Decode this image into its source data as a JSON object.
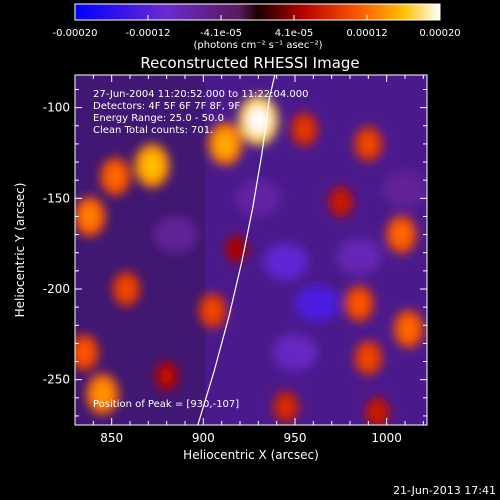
{
  "colorbar": {
    "tick_labels": [
      "-0.00020",
      "-0.00012",
      "-4.1e-05",
      "4.1e-05",
      "0.00012",
      "0.00020"
    ],
    "unit_label": "(photons cm⁻² s⁻¹ asec⁻²)",
    "range": [
      -0.0002,
      0.0002
    ]
  },
  "chart_data": {
    "type": "heatmap",
    "title": "Reconstructed RHESSI Image",
    "xlabel": "Heliocentric X (arcsec)",
    "ylabel": "Heliocentric Y (arcsec)",
    "xlim": [
      830,
      1022
    ],
    "ylim": [
      -275,
      -82
    ],
    "x_ticks": [
      850,
      900,
      950,
      1000
    ],
    "y_ticks": [
      -100,
      -150,
      -200,
      -250
    ],
    "annotations": [
      "27-Jun-2004 11:20:52.000 to 11:22:04.000",
      "Detectors: 4F 5F 6F 7F 8F, 9F",
      "Energy Range: 25.0 - 50.0",
      "Clean    Total counts: 701.",
      "Position of Peak = [930,-107]"
    ],
    "peak": [
      930,
      -107
    ],
    "limb_curve": [
      [
        897,
        -275
      ],
      [
        906,
        -245
      ],
      [
        914,
        -215
      ],
      [
        921,
        -185
      ],
      [
        927,
        -155
      ],
      [
        932,
        -125
      ],
      [
        936,
        -95
      ],
      [
        939,
        -82
      ]
    ],
    "hot_spots": [
      {
        "x": 930,
        "y": -107,
        "v": 0.0002
      },
      {
        "x": 912,
        "y": -120,
        "v": 0.00015
      },
      {
        "x": 872,
        "y": -132,
        "v": 0.00016
      },
      {
        "x": 852,
        "y": -138,
        "v": 0.00012
      },
      {
        "x": 838,
        "y": -160,
        "v": 0.00013
      },
      {
        "x": 858,
        "y": -200,
        "v": 0.0001
      },
      {
        "x": 835,
        "y": -235,
        "v": 0.00011
      },
      {
        "x": 845,
        "y": -258,
        "v": 0.00014
      },
      {
        "x": 905,
        "y": -212,
        "v": 0.0001
      },
      {
        "x": 955,
        "y": -112,
        "v": 9e-05
      },
      {
        "x": 990,
        "y": -120,
        "v": 0.0001
      },
      {
        "x": 1008,
        "y": -170,
        "v": 0.00012
      },
      {
        "x": 975,
        "y": -152,
        "v": 7e-05
      },
      {
        "x": 985,
        "y": -208,
        "v": 0.00011
      },
      {
        "x": 990,
        "y": -238,
        "v": 0.0001
      },
      {
        "x": 1012,
        "y": -222,
        "v": 0.00012
      },
      {
        "x": 945,
        "y": -265,
        "v": 8e-05
      },
      {
        "x": 995,
        "y": -268,
        "v": 7e-05
      },
      {
        "x": 880,
        "y": -248,
        "v": 6e-05
      },
      {
        "x": 918,
        "y": -178,
        "v": 5e-05
      }
    ],
    "cold_spots": [
      {
        "x": 962,
        "y": -208,
        "v": -0.00013
      },
      {
        "x": 945,
        "y": -185,
        "v": -0.00011
      },
      {
        "x": 950,
        "y": -235,
        "v": -9e-05
      },
      {
        "x": 985,
        "y": -182,
        "v": -8e-05
      },
      {
        "x": 885,
        "y": -170,
        "v": -6e-05
      },
      {
        "x": 930,
        "y": -150,
        "v": -7e-05
      },
      {
        "x": 1010,
        "y": -145,
        "v": -6e-05
      }
    ]
  },
  "footer": {
    "timestamp": "21-Jun-2013 17:41"
  }
}
